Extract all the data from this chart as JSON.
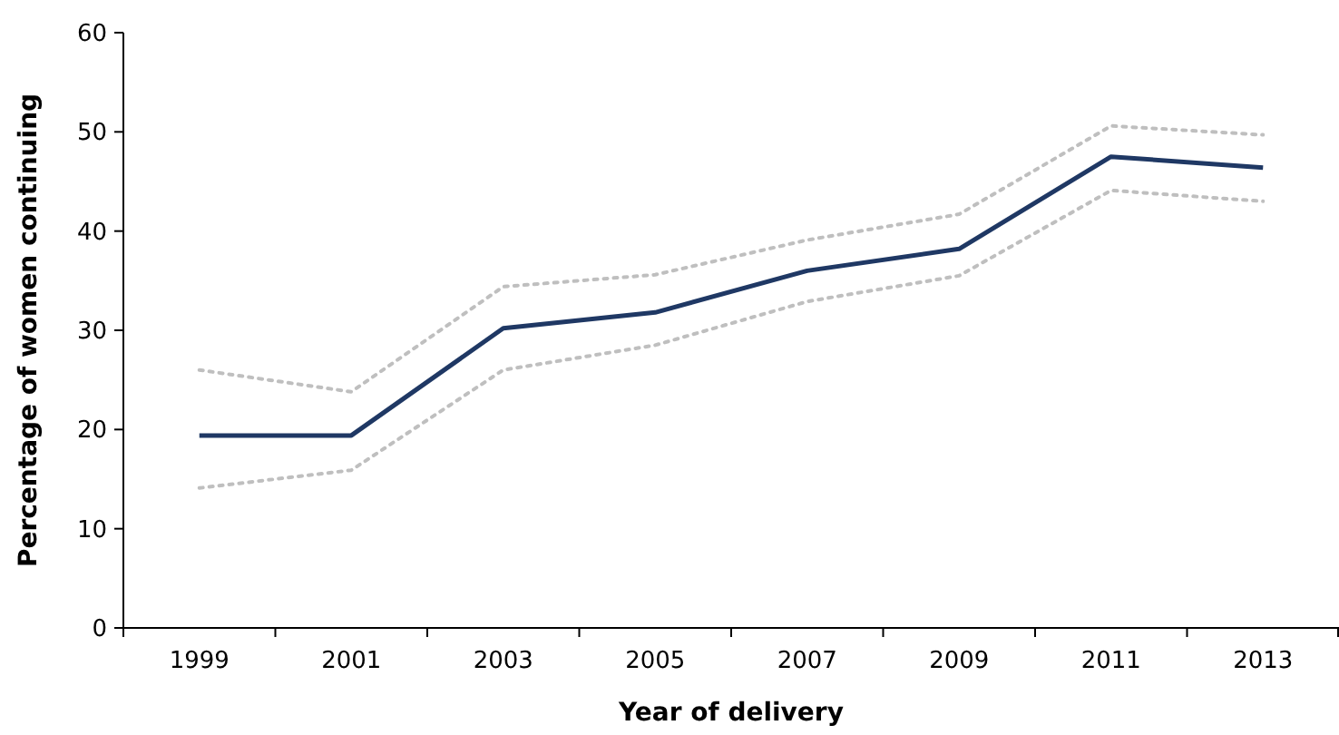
{
  "chart_data": {
    "type": "line",
    "xlabel": "Year of delivery",
    "ylabel": "Percentage of women continuing",
    "categories": [
      "1999",
      "2001",
      "2003",
      "2005",
      "2007",
      "2009",
      "2011",
      "2013"
    ],
    "ylim": [
      0,
      60
    ],
    "yticks": [
      0,
      10,
      20,
      30,
      40,
      50,
      60
    ],
    "grid": false,
    "marker": "none",
    "series": [
      {
        "color": "#bfbfbf",
        "line_style": "dotted",
        "values": [
          26.0,
          23.8,
          34.4,
          35.6,
          39.1,
          41.7,
          50.6,
          49.7
        ]
      },
      {
        "color": "#bfbfbf",
        "line_style": "dotted",
        "values": [
          14.1,
          15.9,
          26.0,
          28.5,
          32.9,
          35.5,
          44.1,
          43.0
        ]
      },
      {
        "color": "#1f3864",
        "line_style": "solid",
        "values": [
          19.4,
          19.4,
          30.2,
          31.8,
          36.0,
          38.2,
          47.5,
          46.4
        ]
      }
    ]
  }
}
